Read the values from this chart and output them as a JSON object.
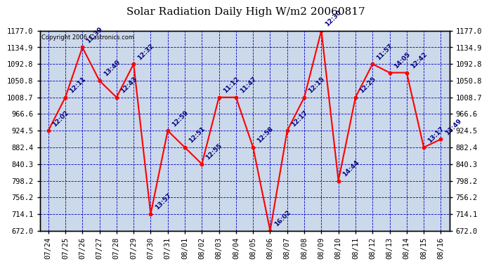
{
  "title": "Solar Radiation Daily High W/m2 20060817",
  "copyright": "Copyright 2006 Castronics.com",
  "dates": [
    "07/24",
    "07/25",
    "07/26",
    "07/27",
    "07/28",
    "07/29",
    "07/30",
    "07/31",
    "08/01",
    "08/02",
    "08/03",
    "08/04",
    "08/05",
    "08/06",
    "08/07",
    "08/08",
    "08/09",
    "08/10",
    "08/11",
    "08/12",
    "08/13",
    "08/14",
    "08/15",
    "08/16"
  ],
  "values": [
    924.5,
    1008.7,
    1134.9,
    1050.8,
    1008.7,
    1092.8,
    714.1,
    924.5,
    882.4,
    840.3,
    1008.7,
    1008.7,
    882.4,
    672.0,
    924.5,
    1008.7,
    1177.0,
    798.2,
    1008.7,
    1092.8,
    1071.0,
    1071.0,
    882.4,
    903.0
  ],
  "labels": [
    "12:02",
    "12:11",
    "11:39",
    "13:40",
    "12:43",
    "12:32",
    "13:57",
    "12:59",
    "12:51",
    "12:55",
    "11:12",
    "11:47",
    "12:58",
    "16:02",
    "12:17",
    "12:15",
    "12:30",
    "14:44",
    "12:25",
    "11:57",
    "14:05",
    "12:42",
    "13:17",
    "13:49"
  ],
  "ylim": [
    672.0,
    1177.0
  ],
  "yticks": [
    672.0,
    714.1,
    756.2,
    798.2,
    840.3,
    882.4,
    924.5,
    966.6,
    1008.7,
    1050.8,
    1092.8,
    1134.9,
    1177.0
  ],
  "bg_color": "#ccd9ea",
  "line_color": "red",
  "point_color": "red",
  "label_color": "#000080",
  "title_color": "black",
  "copyright_color": "black",
  "grid_color": "#0000cc",
  "border_color": "black",
  "fig_bg": "white"
}
